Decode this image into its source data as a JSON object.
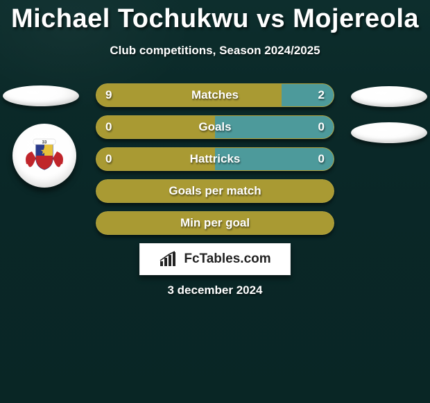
{
  "colors": {
    "bg_top": "#0d2e2d",
    "bg_bottom": "#092625",
    "title": "#ffffff",
    "text_shadow": "rgba(0,0,0,0.55)",
    "bar_olive": "#a99a33",
    "bar_olive_border": "#b2a33e",
    "bar_teal": "#4d9a9b",
    "bar_teal_border": "#56a3a3",
    "oval_fill_a": "#ffffff",
    "oval_fill_b": "#dcdcda",
    "fct_box_bg": "#ffffff",
    "fct_text": "#222222"
  },
  "title": {
    "player1": "Michael Tochukwu",
    "vs": "vs",
    "player2": "Mojereola"
  },
  "subtitle": "Club competitions, Season 2024/2025",
  "club_badge": {
    "top_text": "33",
    "wing_color": "#c0252b",
    "shield_blue": "#2b3b8c",
    "shield_yellow": "#e7c23a",
    "shield_red": "#c0252b"
  },
  "rows": [
    {
      "label": "Matches",
      "left_val": "9",
      "right_val": "2",
      "left_pct": 78,
      "right_pct": 22,
      "left_color": "#a99a33",
      "right_color": "#4d9a9b",
      "show_vals": true
    },
    {
      "label": "Goals",
      "left_val": "0",
      "right_val": "0",
      "left_pct": 50,
      "right_pct": 50,
      "left_color": "#a99a33",
      "right_color": "#4d9a9b",
      "show_vals": true
    },
    {
      "label": "Hattricks",
      "left_val": "0",
      "right_val": "0",
      "left_pct": 50,
      "right_pct": 50,
      "left_color": "#a99a33",
      "right_color": "#4d9a9b",
      "show_vals": true
    },
    {
      "label": "Goals per match",
      "solid": true,
      "solid_color": "#a99a33"
    },
    {
      "label": "Min per goal",
      "solid": true,
      "solid_color": "#a99a33"
    }
  ],
  "fct": {
    "label": "FcTables.com"
  },
  "date": "3 december 2024"
}
